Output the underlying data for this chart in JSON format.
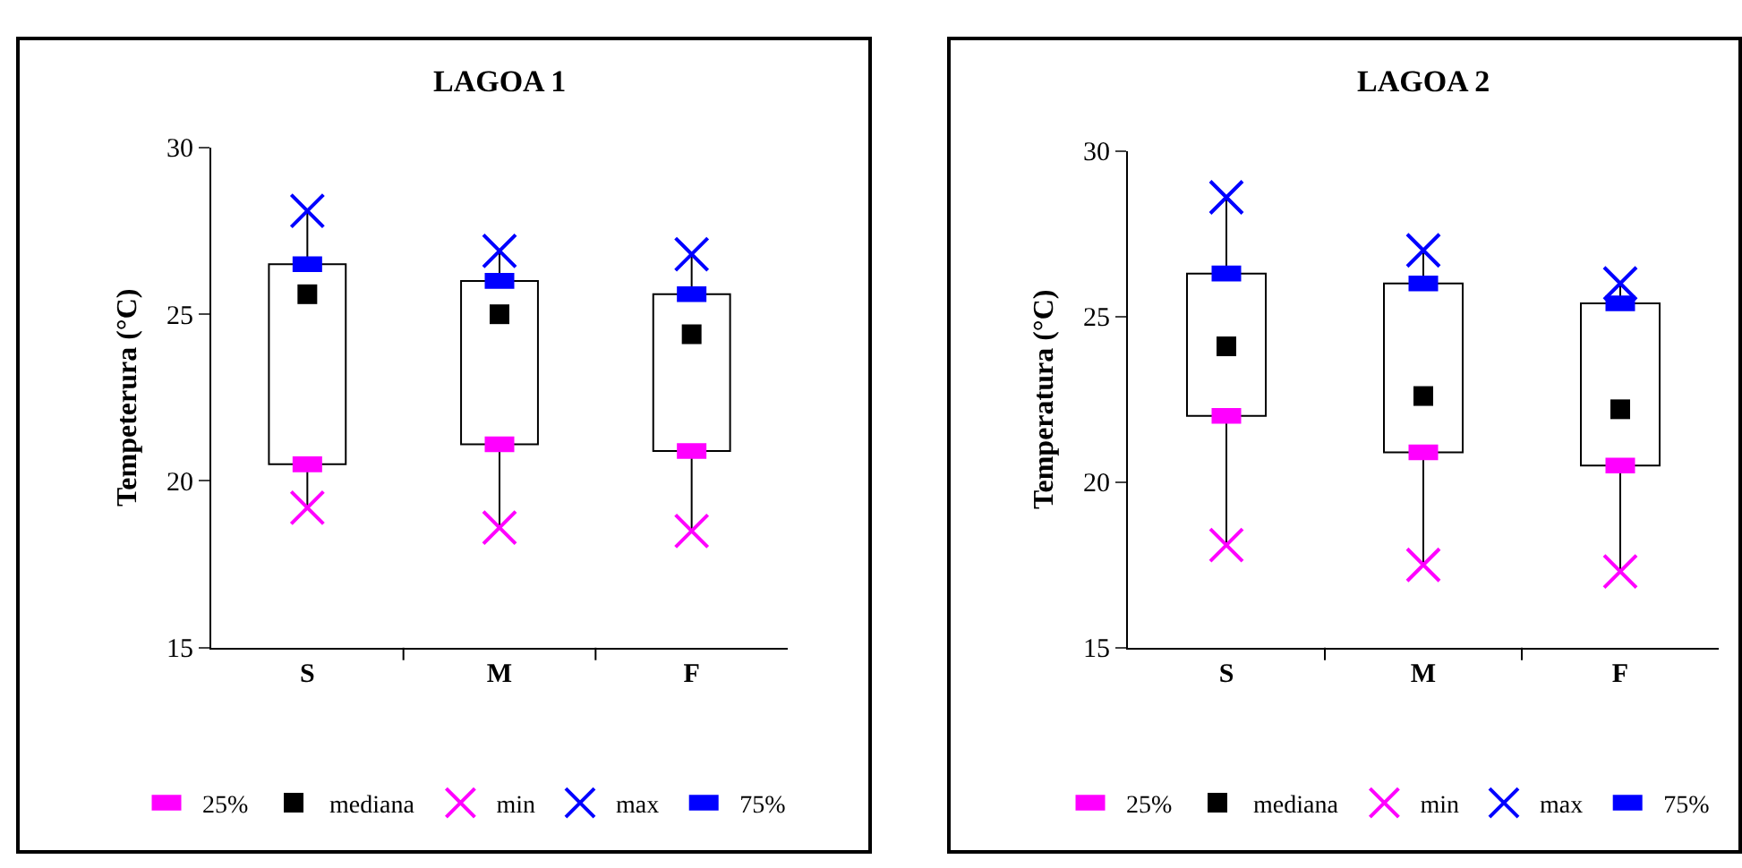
{
  "chart_data": [
    {
      "type": "box",
      "title": "LAGOA 1",
      "ylabel": "Tempeterura (°C)",
      "categories": [
        "S",
        "M",
        "F"
      ],
      "ylim": [
        15,
        30
      ],
      "yticks": [
        15,
        20,
        25,
        30
      ],
      "grid": false,
      "legend": "bottom",
      "series": [
        {
          "name": "25%",
          "type": "scatter",
          "marker": "square",
          "color": "#ff00ff",
          "x": [
            "S",
            "M",
            "F"
          ],
          "values": [
            20.5,
            21.1,
            20.9
          ]
        },
        {
          "name": "mediana",
          "type": "box",
          "marker": "square",
          "color": "#000000",
          "boxes": [
            {
              "low": 19.2,
              "q1": 20.5,
              "median": 25.6,
              "q3": 26.5,
              "high": 28.1
            },
            {
              "low": 18.6,
              "q1": 21.1,
              "median": 25.0,
              "q3": 26.0,
              "high": 26.9
            },
            {
              "low": 18.5,
              "q1": 20.9,
              "median": 24.4,
              "q3": 25.6,
              "high": 26.8
            }
          ]
        },
        {
          "name": "min",
          "type": "scatter",
          "marker": "cross",
          "color": "#ff00ff",
          "x": [
            "S",
            "M",
            "F"
          ],
          "values": [
            19.2,
            18.6,
            18.5
          ]
        },
        {
          "name": "max",
          "type": "scatter",
          "marker": "cross",
          "color": "#0000ff",
          "x": [
            "S",
            "M",
            "F"
          ],
          "values": [
            28.1,
            26.9,
            26.8
          ]
        },
        {
          "name": "75%",
          "type": "scatter",
          "marker": "square",
          "color": "#0000ff",
          "x": [
            "S",
            "M",
            "F"
          ],
          "values": [
            26.5,
            26.0,
            25.6
          ]
        }
      ]
    },
    {
      "type": "box",
      "title": "LAGOA 2",
      "ylabel": "Temperatura (°C)",
      "categories": [
        "S",
        "M",
        "F"
      ],
      "ylim": [
        15,
        30
      ],
      "yticks": [
        15,
        20,
        25,
        30
      ],
      "grid": false,
      "legend": "bottom",
      "series": [
        {
          "name": "25%",
          "type": "scatter",
          "marker": "square",
          "color": "#ff00ff",
          "x": [
            "S",
            "M",
            "F"
          ],
          "values": [
            22.0,
            20.9,
            20.5
          ]
        },
        {
          "name": "mediana",
          "type": "box",
          "marker": "square",
          "color": "#000000",
          "boxes": [
            {
              "low": 18.1,
              "q1": 22.0,
              "median": 24.1,
              "q3": 26.3,
              "high": 28.6
            },
            {
              "low": 17.5,
              "q1": 20.9,
              "median": 22.6,
              "q3": 26.0,
              "high": 27.0
            },
            {
              "low": 17.3,
              "q1": 20.5,
              "median": 22.2,
              "q3": 25.4,
              "high": 26.0
            }
          ]
        },
        {
          "name": "min",
          "type": "scatter",
          "marker": "cross",
          "color": "#ff00ff",
          "x": [
            "S",
            "M",
            "F"
          ],
          "values": [
            18.1,
            17.5,
            17.3
          ]
        },
        {
          "name": "max",
          "type": "scatter",
          "marker": "cross",
          "color": "#0000ff",
          "x": [
            "S",
            "M",
            "F"
          ],
          "values": [
            28.6,
            27.0,
            26.0
          ]
        },
        {
          "name": "75%",
          "type": "scatter",
          "marker": "square",
          "color": "#0000ff",
          "x": [
            "S",
            "M",
            "F"
          ],
          "values": [
            26.3,
            26.0,
            25.4
          ]
        }
      ]
    }
  ]
}
